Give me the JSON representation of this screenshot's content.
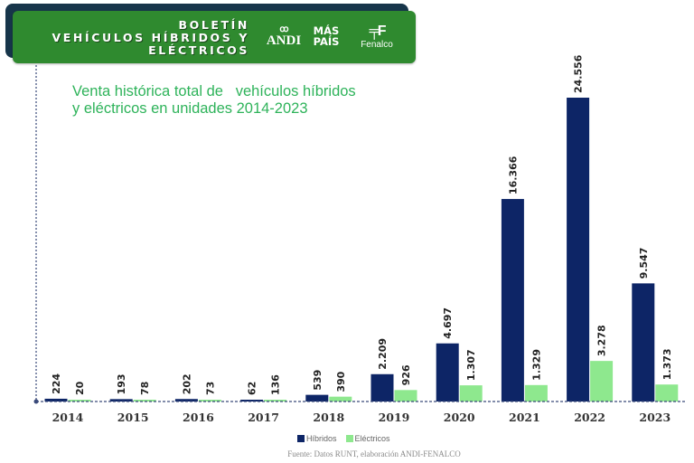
{
  "banner": {
    "title_lines": [
      "BOLETÍN",
      "VEHÍCULOS HÍBRIDOS Y",
      "ELÉCTRICOS"
    ],
    "logos": {
      "andi": {
        "symbol": "ꝏ",
        "text": "ANDI"
      },
      "mas_pais": {
        "line1": "MÁS",
        "line2": "PAÍS"
      },
      "fenalco": {
        "mark": "╤F",
        "text": "Fenalco"
      }
    }
  },
  "colors": {
    "banner_green": "#2f8a2f",
    "banner_shadow": "#17354a",
    "title_green": "#2eb35a",
    "hibridos": "#0d2566",
    "electricos": "#8ee88e",
    "axis": "#3a4a7a"
  },
  "chart_data": {
    "type": "bar",
    "title": "Venta histórica total de vehículos híbridos y eléctricos en unidades 2014-2023",
    "title_lines": [
      "Venta histórica total de   vehículos híbridos",
      "y eléctricos en unidades 2014-2023"
    ],
    "xlabel": "",
    "ylabel": "",
    "categories": [
      "2014",
      "2015",
      "2016",
      "2017",
      "2018",
      "2019",
      "2020",
      "2021",
      "2022",
      "2023"
    ],
    "series": [
      {
        "name": "Híbridos",
        "color": "#0d2566",
        "values": [
          224,
          193,
          202,
          62,
          539,
          2209,
          4697,
          16366,
          24556,
          9547
        ],
        "labels": [
          "224",
          "193",
          "202",
          "62",
          "539",
          "2.209",
          "4.697",
          "16.366",
          "24.556",
          "9.547"
        ]
      },
      {
        "name": "Eléctricos",
        "color": "#8ee88e",
        "values": [
          20,
          78,
          73,
          136,
          390,
          926,
          1307,
          1329,
          3278,
          1373
        ],
        "labels": [
          "20",
          "78",
          "73",
          "136",
          "390",
          "926",
          "1.307",
          "1.329",
          "3.278",
          "1.373"
        ]
      }
    ],
    "ylim": [
      0,
      25000
    ],
    "grid": false,
    "legend": "bottom-center",
    "data_labels": "rotated-vertical"
  },
  "legend": {
    "items": [
      {
        "label": "Híbridos"
      },
      {
        "label": "Eléctricos"
      }
    ]
  },
  "source": "Fuente: Datos RUNT, elaboración ANDI-FENALCO"
}
